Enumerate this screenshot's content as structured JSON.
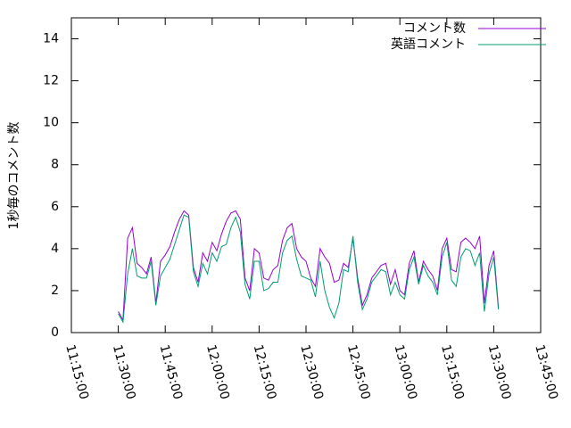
{
  "chart_data": {
    "type": "line",
    "ylabel": "1秒毎のコメント数",
    "x": [
      690,
      691.5,
      693,
      694.5,
      696,
      697.5,
      699,
      700.5,
      702,
      703.5,
      705,
      706.5,
      708,
      709.5,
      711,
      712.5,
      714,
      715.5,
      717,
      718.5,
      720,
      721.5,
      723,
      724.5,
      726,
      727.5,
      729,
      730.5,
      732,
      733.5,
      735,
      736.5,
      738,
      739.5,
      741,
      742.5,
      744,
      745.5,
      747,
      748.5,
      750,
      751.5,
      753,
      754.5,
      756,
      757.5,
      759,
      760.5,
      762,
      763.5,
      765,
      766.5,
      768,
      769.5,
      771,
      772.5,
      774,
      775.5,
      777,
      778.5,
      780,
      781.5,
      783,
      784.5,
      786,
      787.5,
      789,
      790.5,
      792,
      793.5,
      795,
      796.5,
      798,
      799.5,
      801,
      802.5,
      804,
      805.5,
      807,
      808.5,
      810,
      811.5
    ],
    "series": [
      {
        "name": "コメント数",
        "color": "#9400d3",
        "values": [
          1.0,
          0.6,
          4.5,
          5.0,
          3.3,
          3.1,
          2.8,
          3.6,
          1.4,
          3.4,
          3.7,
          4.1,
          4.8,
          5.4,
          5.8,
          5.6,
          3.1,
          2.4,
          3.8,
          3.4,
          4.3,
          3.9,
          4.7,
          5.3,
          5.7,
          5.8,
          5.4,
          2.6,
          2.0,
          4.0,
          3.8,
          2.6,
          2.5,
          3.0,
          3.2,
          4.4,
          5.0,
          5.2,
          4.0,
          3.6,
          3.4,
          2.6,
          2.2,
          4.0,
          3.6,
          3.3,
          2.4,
          2.5,
          3.3,
          3.1,
          4.5,
          2.6,
          1.3,
          1.8,
          2.6,
          2.9,
          3.2,
          3.3,
          2.3,
          3.0,
          2.0,
          1.8,
          3.3,
          3.9,
          2.4,
          3.4,
          3.0,
          2.7,
          2.0,
          4.0,
          4.5,
          3.0,
          2.9,
          4.3,
          4.5,
          4.3,
          4.0,
          4.6,
          1.4,
          3.2,
          3.9,
          1.2
        ]
      },
      {
        "name": "英語コメント",
        "color": "#009e73",
        "values": [
          0.9,
          0.5,
          2.8,
          4.0,
          2.7,
          2.6,
          2.6,
          3.4,
          1.3,
          2.7,
          3.1,
          3.5,
          4.2,
          4.9,
          5.6,
          5.5,
          2.9,
          2.2,
          3.3,
          2.8,
          3.8,
          3.4,
          4.1,
          4.2,
          5.0,
          5.5,
          4.8,
          2.3,
          1.6,
          3.4,
          3.4,
          2.0,
          2.1,
          2.4,
          2.4,
          3.8,
          4.4,
          4.6,
          3.5,
          2.7,
          2.6,
          2.5,
          1.7,
          3.4,
          2.0,
          1.2,
          0.7,
          1.4,
          3.0,
          2.9,
          4.6,
          2.4,
          1.1,
          1.6,
          2.4,
          2.7,
          3.0,
          2.9,
          1.8,
          2.4,
          1.8,
          1.6,
          3.0,
          3.6,
          2.3,
          3.2,
          2.7,
          2.4,
          1.8,
          3.6,
          4.3,
          2.5,
          2.2,
          3.6,
          4.0,
          3.9,
          3.2,
          3.8,
          1.0,
          2.8,
          3.6,
          1.1
        ]
      }
    ],
    "xlim": [
      675,
      825
    ],
    "xticks": [
      {
        "value": 675,
        "label": "11:15:00"
      },
      {
        "value": 690,
        "label": "11:30:00"
      },
      {
        "value": 705,
        "label": "11:45:00"
      },
      {
        "value": 720,
        "label": "12:00:00"
      },
      {
        "value": 735,
        "label": "12:15:00"
      },
      {
        "value": 750,
        "label": "12:30:00"
      },
      {
        "value": 765,
        "label": "12:45:00"
      },
      {
        "value": 780,
        "label": "13:00:00"
      },
      {
        "value": 795,
        "label": "13:15:00"
      },
      {
        "value": 810,
        "label": "13:30:00"
      },
      {
        "value": 825,
        "label": "13:45:00"
      }
    ],
    "ylim": [
      0,
      15
    ],
    "yticks": [
      0,
      2,
      4,
      6,
      8,
      10,
      12,
      14
    ],
    "legend": "top-right"
  }
}
